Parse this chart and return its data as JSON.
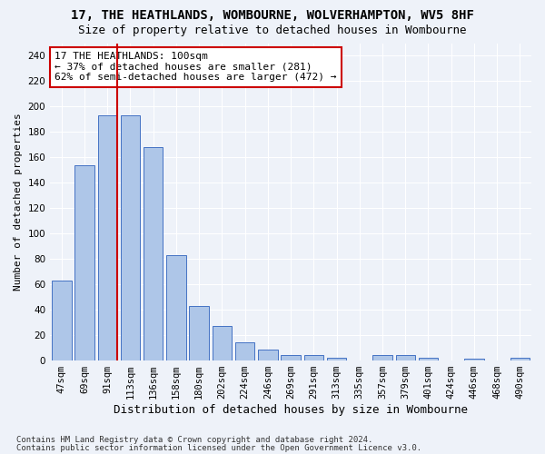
{
  "title1": "17, THE HEATHLANDS, WOMBOURNE, WOLVERHAMPTON, WV5 8HF",
  "title2": "Size of property relative to detached houses in Wombourne",
  "xlabel": "Distribution of detached houses by size in Wombourne",
  "ylabel": "Number of detached properties",
  "categories": [
    "47sqm",
    "69sqm",
    "91sqm",
    "113sqm",
    "136sqm",
    "158sqm",
    "180sqm",
    "202sqm",
    "224sqm",
    "246sqm",
    "269sqm",
    "291sqm",
    "313sqm",
    "335sqm",
    "357sqm",
    "379sqm",
    "401sqm",
    "424sqm",
    "446sqm",
    "468sqm",
    "490sqm"
  ],
  "values": [
    63,
    154,
    193,
    193,
    168,
    83,
    43,
    27,
    14,
    8,
    4,
    4,
    2,
    0,
    4,
    4,
    2,
    0,
    1,
    0,
    2
  ],
  "bar_color": "#aec6e8",
  "bar_edge_color": "#4472c4",
  "highlight_bar_idx": 2,
  "highlight_color": "#cc0000",
  "annotation_text": "17 THE HEATHLANDS: 100sqm\n← 37% of detached houses are smaller (281)\n62% of semi-detached houses are larger (472) →",
  "annotation_box_color": "#ffffff",
  "annotation_box_edge": "#cc0000",
  "footnote1": "Contains HM Land Registry data © Crown copyright and database right 2024.",
  "footnote2": "Contains public sector information licensed under the Open Government Licence v3.0.",
  "ylim": [
    0,
    250
  ],
  "yticks": [
    0,
    20,
    40,
    60,
    80,
    100,
    120,
    140,
    160,
    180,
    200,
    220,
    240
  ],
  "bg_color": "#eef2f9",
  "grid_color": "#ffffff",
  "title1_fontsize": 10,
  "title2_fontsize": 9,
  "xlabel_fontsize": 9,
  "ylabel_fontsize": 8,
  "tick_fontsize": 7.5,
  "annotation_fontsize": 8,
  "footnote_fontsize": 6.5
}
